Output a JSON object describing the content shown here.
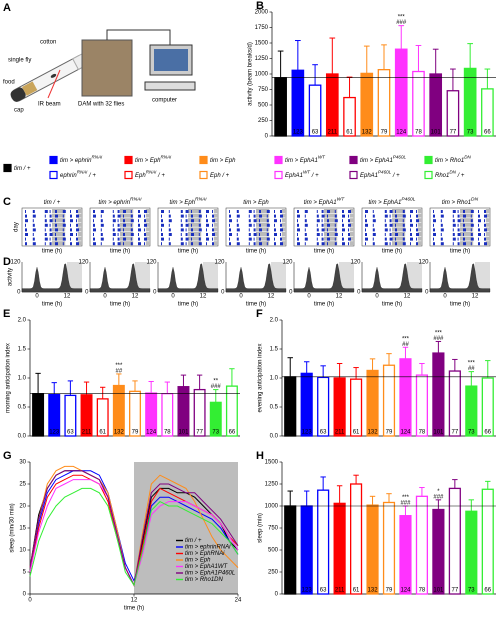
{
  "panel_a": {
    "letter": "A",
    "labels": [
      "cotton",
      "single fly",
      "food",
      "cap",
      "IR beam",
      "DAM with 32 flies",
      "computer"
    ]
  },
  "legend": {
    "entries": [
      {
        "text": "tim / +",
        "color": "#000000",
        "filled": true
      },
      {
        "text": "tim > ephrin",
        "sup": "RNAi",
        "color": "#0000ff",
        "filled": true
      },
      {
        "text": "ephrin",
        "sup": "RNAi",
        "post": " / +",
        "color": "#0000ff",
        "filled": false
      },
      {
        "text": "tim > Eph",
        "sup": "RNAi",
        "color": "#ff0000",
        "filled": true
      },
      {
        "text": "Eph",
        "sup": "RNAi",
        "post": " / +",
        "color": "#ff0000",
        "filled": false
      },
      {
        "text": "tim > Eph",
        "color": "#ff8c1a",
        "filled": true
      },
      {
        "text": "Eph / +",
        "color": "#ff8c1a",
        "filled": false
      },
      {
        "text": "tim > EphA1",
        "sup": "WT",
        "color": "#ff33ff",
        "filled": true
      },
      {
        "text": "EphA1",
        "sup": "WT",
        "post": " / +",
        "color": "#ff33ff",
        "filled": false
      },
      {
        "text": "tim > EphA1",
        "sup": "P460L",
        "color": "#800080",
        "filled": true
      },
      {
        "text": "EphA1",
        "sup": "P460L",
        "post": " / +",
        "color": "#800080",
        "filled": false
      },
      {
        "text": "tim > Rho1",
        "sup": "DN",
        "color": "#33ee33",
        "filled": true
      },
      {
        "text": "Rho1",
        "sup": "DN",
        "post": " / +",
        "color": "#33ee33",
        "filled": false
      }
    ]
  },
  "panel_c": {
    "letter": "C",
    "ylabel": "day",
    "xlabel": "time (h)"
  },
  "panel_d": {
    "letter": "D",
    "ylabel": "activity",
    "xlabel": "time (h)",
    "ylim": [
      0,
      120
    ],
    "yticks": [
      0,
      120
    ],
    "xlim": [
      -6,
      18
    ],
    "xticks": [
      0,
      12
    ]
  },
  "chart_data": [
    {
      "type": "bar",
      "panel": "B",
      "ylabel": "activity (beam breaks/d)",
      "categories": [
        "194",
        "123",
        "63",
        "211",
        "61",
        "132",
        "79",
        "124",
        "78",
        "101",
        "77",
        "73",
        "66"
      ],
      "values": [
        940,
        1060,
        820,
        1000,
        620,
        1010,
        1070,
        1400,
        1040,
        1000,
        730,
        1090,
        760
      ],
      "errors": [
        430,
        480,
        330,
        580,
        330,
        440,
        400,
        380,
        420,
        400,
        350,
        400,
        320
      ],
      "significance": [
        null,
        null,
        null,
        null,
        null,
        null,
        null,
        [
          "***",
          "###"
        ],
        null,
        null,
        null,
        null,
        null
      ],
      "ylim": [
        0,
        2000
      ],
      "yticks": [
        0,
        250,
        500,
        750,
        1000,
        1250,
        1500,
        1750,
        2000
      ],
      "reference_line": true
    },
    {
      "type": "bar",
      "panel": "E",
      "ylabel": "morning anticipation index",
      "categories": [
        "194",
        "123",
        "63",
        "211",
        "61",
        "132",
        "79",
        "124",
        "78",
        "101",
        "77",
        "73",
        "66"
      ],
      "values": [
        0.73,
        0.72,
        0.7,
        0.71,
        0.64,
        0.87,
        0.77,
        0.74,
        0.73,
        0.85,
        0.8,
        0.58,
        0.86
      ],
      "errors": [
        0.35,
        0.2,
        0.25,
        0.22,
        0.2,
        0.2,
        0.18,
        0.2,
        0.2,
        0.2,
        0.25,
        0.22,
        0.3
      ],
      "significance": [
        null,
        null,
        null,
        null,
        null,
        [
          "***",
          "##"
        ],
        null,
        null,
        null,
        null,
        null,
        [
          "**",
          "###"
        ],
        null
      ],
      "ylim": [
        0,
        2
      ],
      "yticks": [
        {
          "value": 0,
          "label": "0.0"
        },
        0.5,
        {
          "value": 1,
          "label": "1.0"
        },
        1.5,
        {
          "value": 2,
          "label": "2.0"
        }
      ],
      "reference_line": true
    },
    {
      "type": "bar",
      "panel": "F",
      "ylabel": "evening anticipation index",
      "categories": [
        "194",
        "123",
        "63",
        "211",
        "61",
        "132",
        "79",
        "124",
        "78",
        "101",
        "77",
        "73",
        "66"
      ],
      "values": [
        1.02,
        1.08,
        1.01,
        1.0,
        0.98,
        1.13,
        1.22,
        1.33,
        1.05,
        1.43,
        1.12,
        0.86,
        1.0
      ],
      "errors": [
        0.33,
        0.2,
        0.2,
        0.25,
        0.2,
        0.2,
        0.2,
        0.2,
        0.2,
        0.2,
        0.2,
        0.25,
        0.3
      ],
      "significance": [
        null,
        null,
        null,
        null,
        null,
        null,
        null,
        [
          "***",
          "##"
        ],
        null,
        [
          "***",
          "###"
        ],
        null,
        [
          "***",
          "##"
        ],
        null
      ],
      "ylim": [
        0,
        2
      ],
      "yticks": [
        {
          "value": 0,
          "label": "0.0"
        },
        0.5,
        {
          "value": 1,
          "label": "1.0"
        },
        1.5,
        {
          "value": 2,
          "label": "2.0"
        }
      ],
      "reference_line": true
    },
    {
      "type": "line",
      "panel": "G",
      "ylabel": "sleep (min/30 min)",
      "xlabel": "time (h)",
      "x": [
        0,
        1,
        2,
        3,
        4,
        5,
        6,
        7,
        8,
        9,
        10,
        11,
        12,
        13,
        14,
        15,
        16,
        17,
        18,
        19,
        20,
        21,
        22,
        23,
        24
      ],
      "series": [
        {
          "name": "tim / +",
          "color": "#000000",
          "values": [
            6,
            18,
            24,
            27,
            28,
            28,
            28,
            27,
            26,
            22,
            14,
            6,
            2,
            12,
            22,
            24,
            24,
            23,
            23,
            22,
            20,
            18,
            16,
            12,
            10
          ]
        },
        {
          "name": "tim > ephrinRNAi",
          "color": "#0000ff",
          "values": [
            5,
            16,
            23,
            26,
            27,
            28,
            28,
            28,
            27,
            23,
            15,
            7,
            3,
            10,
            20,
            22,
            22,
            21,
            20,
            19,
            18,
            17,
            15,
            12,
            9
          ]
        },
        {
          "name": "tim > EphRNAi",
          "color": "#ff0000",
          "values": [
            5,
            15,
            22,
            25,
            26,
            27,
            27,
            26,
            25,
            21,
            13,
            6,
            2,
            11,
            21,
            24,
            23,
            22,
            21,
            20,
            19,
            18,
            16,
            13,
            11
          ]
        },
        {
          "name": "tim > Eph",
          "color": "#ff8c1a",
          "values": [
            6,
            17,
            25,
            28,
            29,
            29,
            28,
            27,
            26,
            23,
            15,
            6,
            2,
            14,
            25,
            27,
            26,
            25,
            24,
            21,
            17,
            13,
            10,
            8,
            6
          ]
        },
        {
          "name": "tim > EphA1WT",
          "color": "#ff33ff",
          "values": [
            5,
            14,
            20,
            24,
            25,
            26,
            26,
            26,
            25,
            22,
            14,
            6,
            2,
            9,
            18,
            20,
            21,
            21,
            21,
            20,
            19,
            18,
            16,
            13,
            10
          ]
        },
        {
          "name": "tim > EphA1P460L",
          "color": "#800080",
          "values": [
            6,
            17,
            24,
            27,
            28,
            28,
            28,
            27,
            26,
            22,
            14,
            6,
            2,
            13,
            23,
            25,
            25,
            24,
            23,
            23,
            21,
            19,
            17,
            14,
            11
          ]
        },
        {
          "name": "tim > Rho1DN",
          "color": "#33ee33",
          "values": [
            4,
            12,
            17,
            20,
            22,
            23,
            24,
            24,
            23,
            20,
            13,
            5,
            2,
            10,
            19,
            21,
            20,
            20,
            19,
            18,
            17,
            16,
            14,
            12,
            9
          ]
        }
      ],
      "night": [
        12,
        24
      ],
      "xlim": [
        0,
        24
      ],
      "xticks": [
        0,
        12,
        24
      ],
      "ylim": [
        0,
        30
      ],
      "yticks": [
        0,
        5,
        10,
        15,
        20,
        25,
        30
      ],
      "legend": "lower right"
    },
    {
      "type": "bar",
      "panel": "H",
      "ylabel": "sleep (min)",
      "categories": [
        "194",
        "123",
        "63",
        "211",
        "61",
        "132",
        "79",
        "124",
        "78",
        "101",
        "77",
        "73",
        "66"
      ],
      "values": [
        1000,
        1000,
        1180,
        1030,
        1250,
        1010,
        1040,
        890,
        1110,
        960,
        1200,
        940,
        1190
      ],
      "errors": [
        170,
        170,
        150,
        200,
        100,
        100,
        100,
        110,
        100,
        110,
        100,
        130,
        90
      ],
      "significance": [
        null,
        null,
        null,
        null,
        null,
        null,
        null,
        [
          "***",
          "###"
        ],
        null,
        [
          "*",
          "###"
        ],
        null,
        null,
        null
      ],
      "ylim": [
        0,
        1500
      ],
      "yticks": [
        0,
        250,
        500,
        750,
        1000,
        1250,
        1500
      ],
      "reference_line": true
    }
  ]
}
